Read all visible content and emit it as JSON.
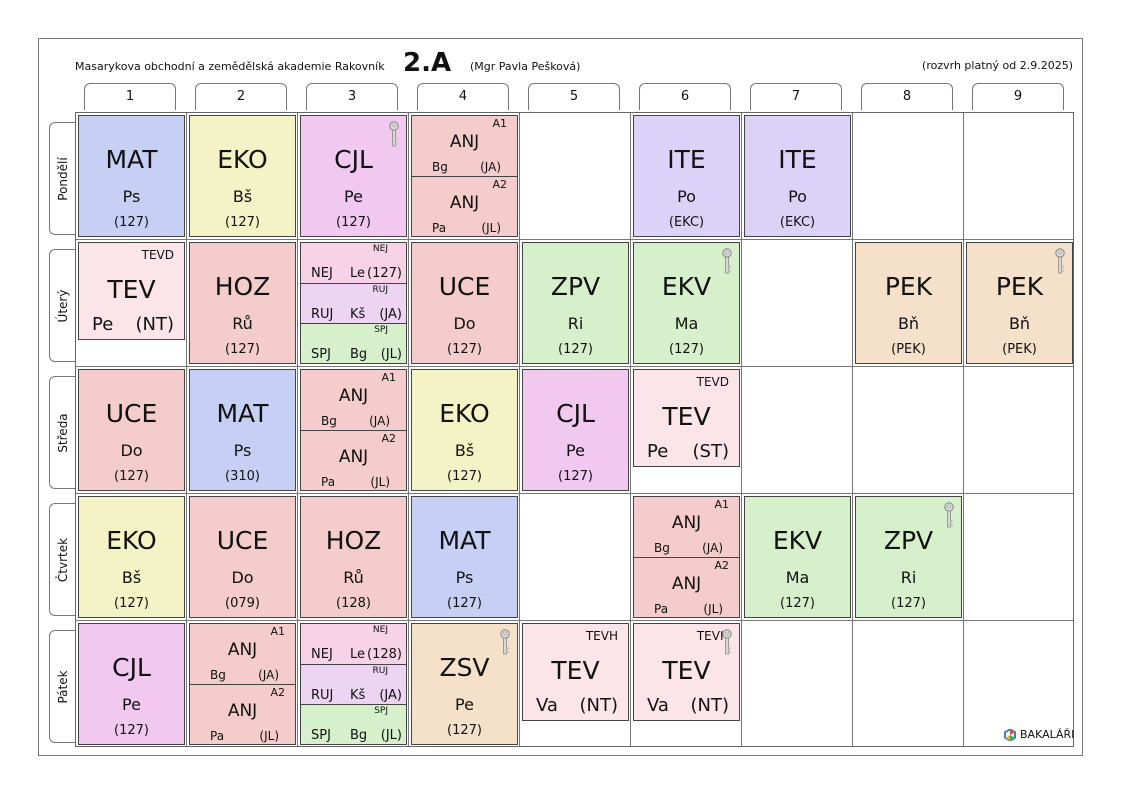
{
  "header": {
    "school": "Masarykova obchodní a zemědělská akademie Rakovník",
    "class_name": "2.A",
    "class_teacher": "(Mgr Pavla Pešková)",
    "validity": "(rozvrh platný od 2.9.2025)"
  },
  "periods": [
    "1",
    "2",
    "3",
    "4",
    "5",
    "6",
    "7",
    "8",
    "9"
  ],
  "days": [
    "Pondělí",
    "Úterý",
    "Středa",
    "Čtvrtek",
    "Pátek"
  ],
  "colors": {
    "MAT": "#c6d0f5",
    "EKO": "#f3f3c6",
    "CJL": "#f0c8f0",
    "ANJ": "#f4cccc",
    "ITE": "#dcd2f8",
    "TEV": "#fbe4ea",
    "HOZ": "#f4cccc",
    "NEJ": "#f8d2e6",
    "RUJ": "#edd4f2",
    "SPJ": "#d6f0cc",
    "UCE": "#f4cccc",
    "ZPV": "#d6f0cc",
    "EKV": "#d6f0cc",
    "PEK": "#f5e0ca",
    "ZSV": "#f5e0ca"
  },
  "lessons": [
    {
      "day": 0,
      "period": 0,
      "type": "single",
      "subject": "MAT",
      "teacher": "Ps",
      "room": "(127)"
    },
    {
      "day": 0,
      "period": 1,
      "type": "single",
      "subject": "EKO",
      "teacher": "Bš",
      "room": "(127)"
    },
    {
      "day": 0,
      "period": 2,
      "type": "single",
      "subject": "CJL",
      "teacher": "Pe",
      "room": "(127)",
      "key": true
    },
    {
      "day": 0,
      "period": 3,
      "type": "split",
      "groups": [
        {
          "group": "A1",
          "subject": "ANJ",
          "teacher": "Bg",
          "room": "(JA)"
        },
        {
          "group": "A2",
          "subject": "ANJ",
          "teacher": "Pa",
          "room": "(JL)"
        }
      ]
    },
    {
      "day": 0,
      "period": 5,
      "type": "single",
      "subject": "ITE",
      "teacher": "Po",
      "room": "(EKC)"
    },
    {
      "day": 0,
      "period": 6,
      "type": "single",
      "subject": "ITE",
      "teacher": "Po",
      "room": "(EKC)"
    },
    {
      "day": 1,
      "period": 0,
      "type": "tev",
      "group": "TEVD",
      "subject": "TEV",
      "teacher": "Pe",
      "room": "(NT)"
    },
    {
      "day": 1,
      "period": 1,
      "type": "single",
      "subject": "HOZ",
      "teacher": "Rů",
      "room": "(127)"
    },
    {
      "day": 1,
      "period": 2,
      "type": "triple",
      "groups": [
        {
          "group": "NEJ",
          "subject": "NEJ",
          "teacher": "Le",
          "room": "(127)"
        },
        {
          "group": "RUJ",
          "subject": "RUJ",
          "teacher": "Kš",
          "room": "(JA)"
        },
        {
          "group": "SPJ",
          "subject": "SPJ",
          "teacher": "Bg",
          "room": "(JL)"
        }
      ]
    },
    {
      "day": 1,
      "period": 3,
      "type": "single",
      "subject": "UCE",
      "teacher": "Do",
      "room": "(127)"
    },
    {
      "day": 1,
      "period": 4,
      "type": "single",
      "subject": "ZPV",
      "teacher": "Ri",
      "room": "(127)"
    },
    {
      "day": 1,
      "period": 5,
      "type": "single",
      "subject": "EKV",
      "teacher": "Ma",
      "room": "(127)",
      "key": true
    },
    {
      "day": 1,
      "period": 7,
      "type": "single",
      "subject": "PEK",
      "teacher": "Bň",
      "room": "(PEK)"
    },
    {
      "day": 1,
      "period": 8,
      "type": "single",
      "subject": "PEK",
      "teacher": "Bň",
      "room": "(PEK)",
      "key": true
    },
    {
      "day": 2,
      "period": 0,
      "type": "single",
      "subject": "UCE",
      "teacher": "Do",
      "room": "(127)"
    },
    {
      "day": 2,
      "period": 1,
      "type": "single",
      "subject": "MAT",
      "teacher": "Ps",
      "room": "(310)"
    },
    {
      "day": 2,
      "period": 2,
      "type": "split",
      "groups": [
        {
          "group": "A1",
          "subject": "ANJ",
          "teacher": "Bg",
          "room": "(JA)"
        },
        {
          "group": "A2",
          "subject": "ANJ",
          "teacher": "Pa",
          "room": "(JL)"
        }
      ]
    },
    {
      "day": 2,
      "period": 3,
      "type": "single",
      "subject": "EKO",
      "teacher": "Bš",
      "room": "(127)"
    },
    {
      "day": 2,
      "period": 4,
      "type": "single",
      "subject": "CJL",
      "teacher": "Pe",
      "room": "(127)"
    },
    {
      "day": 2,
      "period": 5,
      "type": "tev",
      "group": "TEVD",
      "subject": "TEV",
      "teacher": "Pe",
      "room": "(ST)"
    },
    {
      "day": 3,
      "period": 0,
      "type": "single",
      "subject": "EKO",
      "teacher": "Bš",
      "room": "(127)"
    },
    {
      "day": 3,
      "period": 1,
      "type": "single",
      "subject": "UCE",
      "teacher": "Do",
      "room": "(079)"
    },
    {
      "day": 3,
      "period": 2,
      "type": "single",
      "subject": "HOZ",
      "teacher": "Rů",
      "room": "(128)"
    },
    {
      "day": 3,
      "period": 3,
      "type": "single",
      "subject": "MAT",
      "teacher": "Ps",
      "room": "(127)"
    },
    {
      "day": 3,
      "period": 5,
      "type": "split",
      "groups": [
        {
          "group": "A1",
          "subject": "ANJ",
          "teacher": "Bg",
          "room": "(JA)"
        },
        {
          "group": "A2",
          "subject": "ANJ",
          "teacher": "Pa",
          "room": "(JL)"
        }
      ]
    },
    {
      "day": 3,
      "period": 6,
      "type": "single",
      "subject": "EKV",
      "teacher": "Ma",
      "room": "(127)"
    },
    {
      "day": 3,
      "period": 7,
      "type": "single",
      "subject": "ZPV",
      "teacher": "Ri",
      "room": "(127)",
      "key": true
    },
    {
      "day": 4,
      "period": 0,
      "type": "single",
      "subject": "CJL",
      "teacher": "Pe",
      "room": "(127)"
    },
    {
      "day": 4,
      "period": 1,
      "type": "split",
      "groups": [
        {
          "group": "A1",
          "subject": "ANJ",
          "teacher": "Bg",
          "room": "(JA)"
        },
        {
          "group": "A2",
          "subject": "ANJ",
          "teacher": "Pa",
          "room": "(JL)"
        }
      ]
    },
    {
      "day": 4,
      "period": 2,
      "type": "triple",
      "groups": [
        {
          "group": "NEJ",
          "subject": "NEJ",
          "teacher": "Le",
          "room": "(128)"
        },
        {
          "group": "RUJ",
          "subject": "RUJ",
          "teacher": "Kš",
          "room": "(JA)"
        },
        {
          "group": "SPJ",
          "subject": "SPJ",
          "teacher": "Bg",
          "room": "(JL)"
        }
      ]
    },
    {
      "day": 4,
      "period": 3,
      "type": "single",
      "subject": "ZSV",
      "teacher": "Pe",
      "room": "(127)",
      "key": true
    },
    {
      "day": 4,
      "period": 4,
      "type": "tev",
      "group": "TEVH",
      "subject": "TEV",
      "teacher": "Va",
      "room": "(NT)"
    },
    {
      "day": 4,
      "period": 5,
      "type": "tev",
      "group": "TEVH",
      "subject": "TEV",
      "teacher": "Va",
      "room": "(NT)",
      "key": true
    }
  ],
  "footer": {
    "brand": "BAKALÁŘI",
    "logo_icon": "hexagon-logo-icon"
  }
}
